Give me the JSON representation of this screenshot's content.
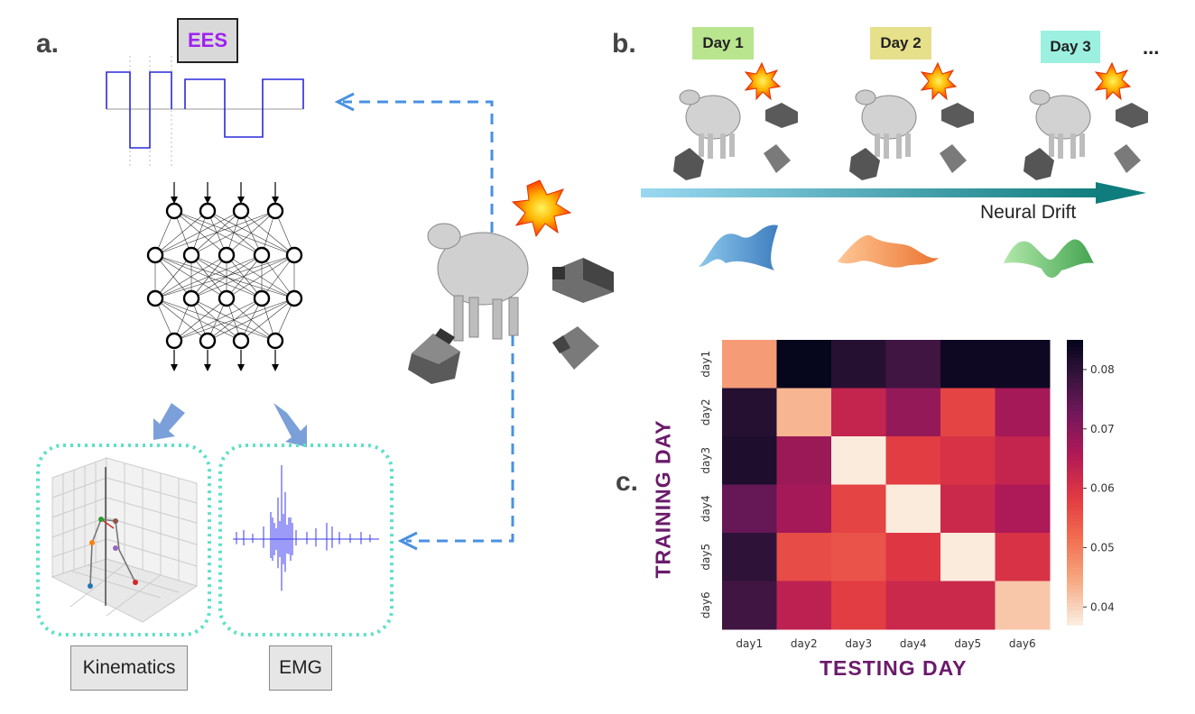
{
  "panels": {
    "a": "a.",
    "b": "b.",
    "c": "c."
  },
  "ees_label": "EES",
  "days": [
    {
      "label": "Day 1",
      "color": "#b9e58f"
    },
    {
      "label": "Day 2",
      "color": "#e6e08a"
    },
    {
      "label": "Day 3",
      "color": "#9cf0e0"
    }
  ],
  "ellipsis": "...",
  "drift_label": "Neural Drift",
  "outputs": {
    "kinematics": "Kinematics",
    "emg": "EMG"
  },
  "colors": {
    "arrow_dashed": "#4a90e2",
    "dotted_border": "#5fe0c8",
    "accent_purple": "#a020f0"
  },
  "chart_data": {
    "type": "heatmap",
    "xlabel": "TESTING DAY",
    "ylabel": "TRAINING DAY",
    "x_categories": [
      "day1",
      "day2",
      "day3",
      "day4",
      "day5",
      "day6"
    ],
    "y_categories": [
      "day1",
      "day2",
      "day3",
      "day4",
      "day5",
      "day6"
    ],
    "values": [
      [
        0.046,
        0.085,
        0.081,
        0.078,
        0.084,
        0.084
      ],
      [
        0.081,
        0.043,
        0.063,
        0.069,
        0.057,
        0.067
      ],
      [
        0.082,
        0.068,
        0.037,
        0.058,
        0.06,
        0.063
      ],
      [
        0.074,
        0.067,
        0.057,
        0.037,
        0.062,
        0.066
      ],
      [
        0.08,
        0.056,
        0.055,
        0.059,
        0.037,
        0.06
      ],
      [
        0.078,
        0.064,
        0.058,
        0.062,
        0.062,
        0.041
      ]
    ],
    "colorbar_ticks": [
      0.04,
      0.05,
      0.06,
      0.07,
      0.08
    ],
    "vmin": 0.037,
    "vmax": 0.085,
    "colormap": "rocket_r"
  }
}
